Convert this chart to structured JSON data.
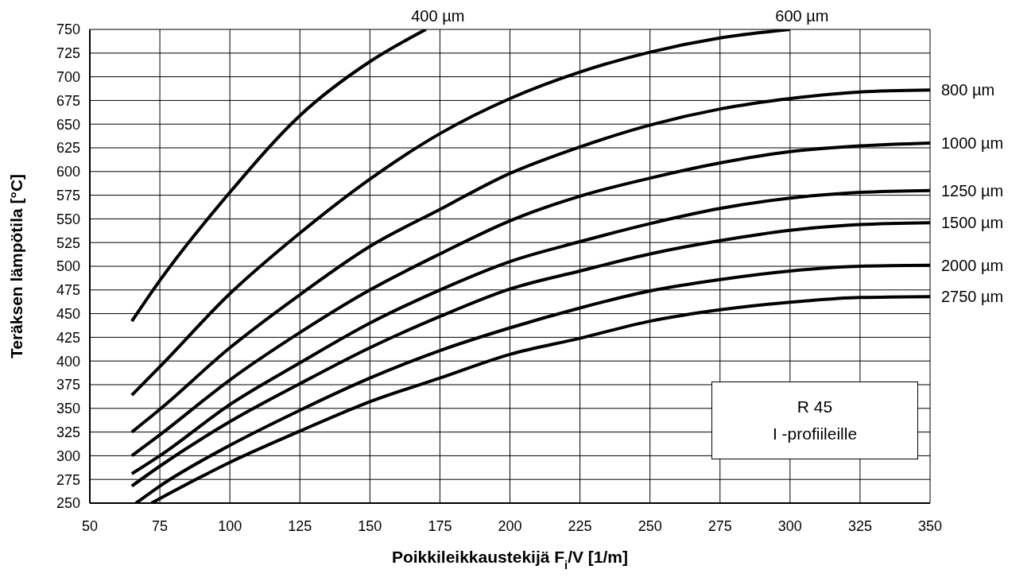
{
  "chart_data": {
    "type": "line",
    "xlabel": "Poikkileikkaustekijä F$_{i}$/V [1/m]",
    "ylabel": "Teräksen lämpötila [°C]",
    "xlim": [
      50,
      350
    ],
    "xticks": [
      50,
      75,
      100,
      125,
      150,
      175,
      200,
      225,
      250,
      275,
      300,
      325,
      350
    ],
    "ylim": [
      250,
      750
    ],
    "yticks": [
      250,
      275,
      300,
      325,
      350,
      375,
      400,
      425,
      450,
      475,
      500,
      525,
      550,
      575,
      600,
      625,
      650,
      675,
      700,
      725,
      750
    ],
    "grid": true,
    "marker": "none",
    "line_style": "solid",
    "annotations": [
      "R 45",
      "I -profiileille"
    ],
    "series": [
      {
        "name": "400 µm",
        "color": "#000000",
        "x": [
          65,
          75,
          100,
          125,
          150,
          170
        ],
        "values": [
          442,
          485,
          578,
          659,
          716,
          750
        ]
      },
      {
        "name": "600 µm",
        "color": "#000000",
        "x": [
          65,
          75,
          100,
          125,
          150,
          175,
          200,
          225,
          250,
          275,
          300
        ],
        "values": [
          364,
          394,
          471,
          535,
          592,
          640,
          677,
          705,
          726,
          741,
          750
        ]
      },
      {
        "name": "800 µm",
        "color": "#000000",
        "x": [
          65,
          75,
          100,
          125,
          150,
          175,
          200,
          225,
          250,
          275,
          300,
          325,
          350
        ],
        "values": [
          325,
          349,
          414,
          470,
          521,
          560,
          598,
          626,
          649,
          666,
          677,
          684,
          686
        ]
      },
      {
        "name": "1000 µm",
        "color": "#000000",
        "x": [
          65,
          75,
          100,
          125,
          150,
          175,
          200,
          225,
          250,
          275,
          300,
          325,
          350
        ],
        "values": [
          300,
          322,
          380,
          430,
          475,
          513,
          548,
          574,
          593,
          609,
          621,
          627,
          630
        ]
      },
      {
        "name": "1250 µm",
        "color": "#000000",
        "x": [
          65,
          75,
          100,
          125,
          150,
          175,
          200,
          225,
          250,
          275,
          300,
          325,
          350
        ],
        "values": [
          281,
          300,
          354,
          398,
          440,
          475,
          505,
          526,
          545,
          561,
          572,
          578,
          580
        ]
      },
      {
        "name": "1500 µm",
        "color": "#000000",
        "x": [
          65,
          75,
          100,
          125,
          150,
          175,
          200,
          225,
          250,
          275,
          300,
          325,
          350
        ],
        "values": [
          268,
          289,
          336,
          376,
          414,
          447,
          476,
          495,
          513,
          527,
          538,
          544,
          546
        ]
      },
      {
        "name": "2000 µm",
        "color": "#000000",
        "x": [
          66.5,
          75,
          100,
          125,
          150,
          175,
          200,
          225,
          250,
          275,
          300,
          325,
          350
        ],
        "values": [
          250,
          268,
          311,
          348,
          382,
          411,
          435,
          456,
          474,
          486,
          495,
          500,
          501
        ]
      },
      {
        "name": "2750 µm",
        "color": "#000000",
        "x": [
          72,
          100,
          125,
          150,
          175,
          200,
          225,
          250,
          275,
          300,
          325,
          350
        ],
        "values": [
          250,
          293,
          326,
          357,
          382,
          407,
          424,
          442,
          454,
          462,
          467,
          468
        ]
      }
    ]
  }
}
